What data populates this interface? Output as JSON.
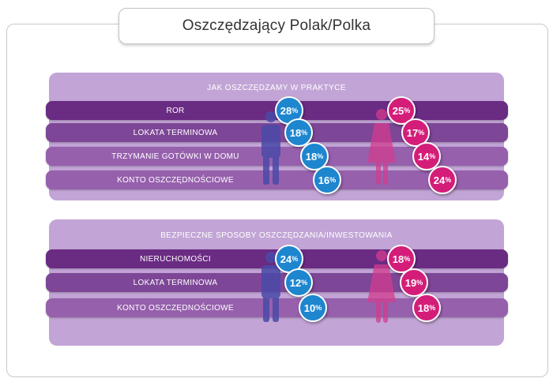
{
  "title": "Oszczędzający Polak/Polka",
  "colors": {
    "panel": "#c2a5d6",
    "bar_dark": "#6a2b83",
    "bar_mid": "#7d4696",
    "bar_light": "#9660ad",
    "men": "#1e86cf",
    "women": "#d41d79",
    "men_figure": "#4a4aa8",
    "women_figure": "#d33c8e"
  },
  "chart_data": [
    {
      "type": "bar",
      "title": "JAK OSZCZĘDZAMY W PRAKTYCE",
      "categories": [
        "ROR",
        "LOKATA TERMINOWA",
        "TRZYMANIE GOTÓWKI W DOMU",
        "KONTO OSZCZĘDNOŚCIOWE"
      ],
      "series": [
        {
          "values": [
            28,
            18,
            18,
            16
          ],
          "unit": "%",
          "icon": "male-figure-icon"
        },
        {
          "values": [
            25,
            17,
            14,
            24
          ],
          "unit": "%",
          "icon": "female-figure-icon"
        }
      ]
    },
    {
      "type": "bar",
      "title": "BEZPIECZNE SPOSOBY OSZCZĘDZANIA/INWESTOWANIA",
      "categories": [
        "NIERUCHOMOŚCI",
        "LOKATA TERMINOWA",
        "KONTO OSZCZĘDNOŚCIOWE"
      ],
      "series": [
        {
          "values": [
            24,
            12,
            10
          ],
          "unit": "%",
          "icon": "male-figure-icon"
        },
        {
          "values": [
            18,
            19,
            18
          ],
          "unit": "%",
          "icon": "female-figure-icon"
        }
      ]
    }
  ]
}
